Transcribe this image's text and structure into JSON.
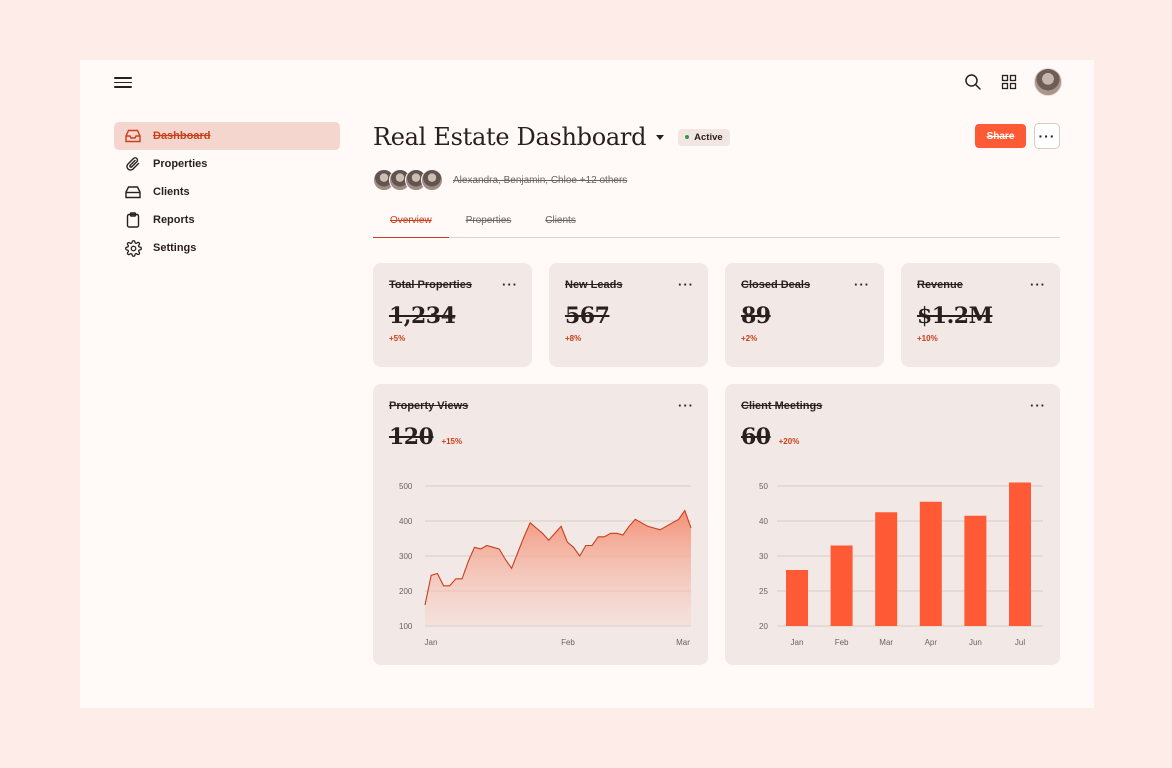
{
  "header": {
    "menu_icon": "hamburger-icon",
    "search_icon": "search-icon",
    "apps_icon": "grid-icon"
  },
  "sidebar": {
    "items": [
      {
        "label": "Dashboard",
        "icon": "inbox-icon"
      },
      {
        "label": "Properties",
        "icon": "paperclip-icon"
      },
      {
        "label": "Clients",
        "icon": "drive-icon"
      },
      {
        "label": "Reports",
        "icon": "clipboard-icon"
      },
      {
        "label": "Settings",
        "icon": "gear-icon"
      }
    ]
  },
  "main": {
    "title": "Real Estate Dashboard",
    "status": "Active",
    "share_label": "Share",
    "more_label": "···",
    "collaborators": "Alexandra, Benjamin, Chloe +12 others",
    "tabs": [
      "Overview",
      "Properties",
      "Clients"
    ]
  },
  "kpis": [
    {
      "title": "Total Properties",
      "value": "1,234",
      "delta": "+5%"
    },
    {
      "title": "New Leads",
      "value": "567",
      "delta": "+8%"
    },
    {
      "title": "Closed Deals",
      "value": "89",
      "delta": "+2%"
    },
    {
      "title": "Revenue",
      "value": "$1.2M",
      "delta": "+10%"
    }
  ],
  "card_menu": "···",
  "colors": {
    "accent": "#ff5a36",
    "accent_dark": "#c93e1c",
    "card": "#f2e8e5"
  },
  "chart_data": [
    {
      "type": "area",
      "title": "Property Views",
      "value": "120",
      "delta": "+15%",
      "y_ticks": [
        500,
        400,
        300,
        200,
        100
      ],
      "ylim": [
        100,
        500
      ],
      "x_ticks": [
        "Jan",
        "Feb",
        "Mar"
      ],
      "values": [
        160,
        245,
        250,
        215,
        215,
        235,
        235,
        285,
        325,
        320,
        330,
        325,
        320,
        290,
        265,
        310,
        355,
        395,
        380,
        365,
        345,
        365,
        385,
        340,
        325,
        300,
        330,
        330,
        355,
        355,
        365,
        365,
        360,
        385,
        405,
        395,
        385,
        380,
        375,
        385,
        395,
        405,
        430,
        380
      ]
    },
    {
      "type": "bar",
      "title": "Client Meetings",
      "value": "60",
      "delta": "+20%",
      "y_ticks": [
        50,
        40,
        30,
        25,
        20
      ],
      "categories": [
        "Jan",
        "Feb",
        "Mar",
        "Apr",
        "Jun",
        "Jul"
      ],
      "values": [
        28,
        33,
        42.5,
        45.5,
        41.5,
        51
      ]
    }
  ]
}
